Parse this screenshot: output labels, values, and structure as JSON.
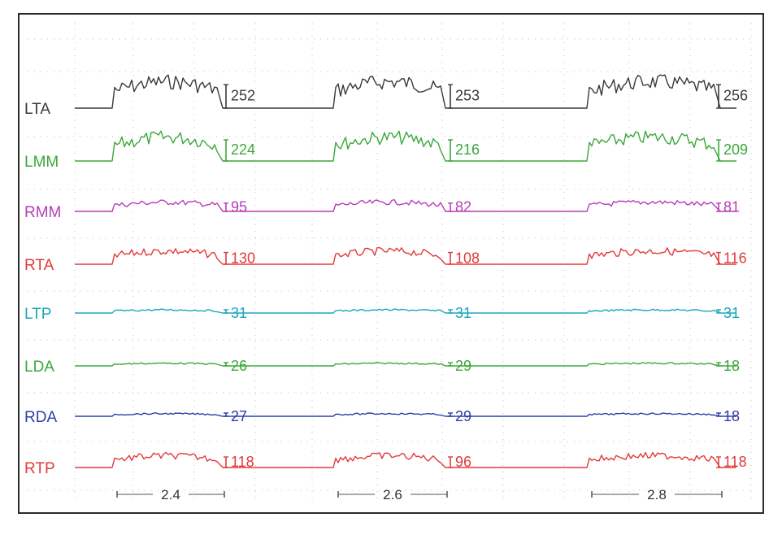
{
  "chart_data": {
    "type": "line",
    "title": "",
    "xlabel": "",
    "ylabel": "",
    "grid": true,
    "grid_style": "dotted",
    "channels": [
      {
        "name": "LTA",
        "color": "#3a3a3a",
        "amplitudes": [
          "252",
          "253",
          "256"
        ],
        "level": 1.0
      },
      {
        "name": "LMM",
        "color": "#3aa83a",
        "amplitudes": [
          "224",
          "216",
          "209"
        ],
        "level": 0.9
      },
      {
        "name": "RMM",
        "color": "#b83cb8",
        "amplitudes": [
          "95",
          "82",
          "81"
        ],
        "level": 0.35
      },
      {
        "name": "RTA",
        "color": "#e23a3a",
        "amplitudes": [
          "130",
          "108",
          "116"
        ],
        "level": 0.5
      },
      {
        "name": "LTP",
        "color": "#1aa8b8",
        "amplitudes": [
          "31",
          "31",
          "31"
        ],
        "level": 0.12
      },
      {
        "name": "LDA",
        "color": "#3aa83a",
        "amplitudes": [
          "26",
          "29",
          "18"
        ],
        "level": 0.1
      },
      {
        "name": "RDA",
        "color": "#2e3ea8",
        "amplitudes": [
          "27",
          "29",
          "18"
        ],
        "level": 0.1
      },
      {
        "name": "RTP",
        "color": "#e23a3a",
        "amplitudes": [
          "118",
          "96",
          "118"
        ],
        "level": 0.45
      }
    ],
    "durations": [
      "2.4",
      "2.6",
      "2.8"
    ]
  }
}
